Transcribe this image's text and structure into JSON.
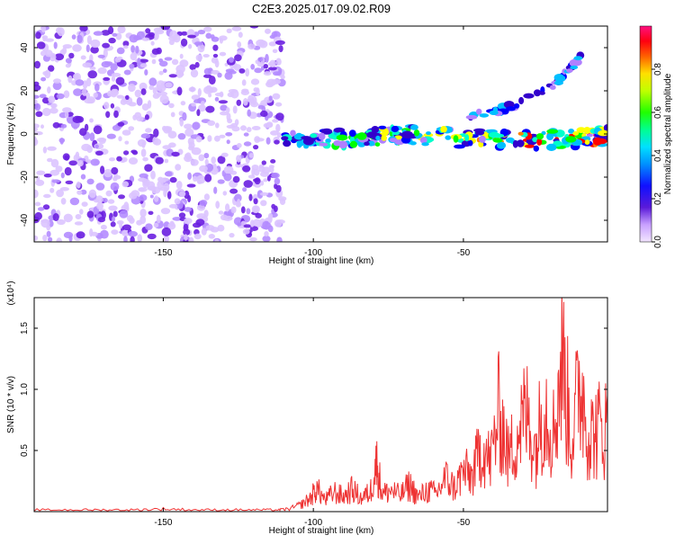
{
  "chart_data": [
    {
      "type": "heatmap",
      "title": "C2E3.2025.017.09.02.R09",
      "xlabel": "Height of straight line (km)",
      "ylabel": "Frequency (Hz)",
      "xlim": [
        -193,
        -2
      ],
      "ylim": [
        -50,
        50
      ],
      "x_ticks": [
        "-150",
        "-100",
        "-50"
      ],
      "y_ticks": [
        "-40",
        "-20",
        "0",
        "20",
        "40"
      ],
      "colorbar": {
        "label": "Normalized spectral amplitude",
        "range": [
          0,
          1
        ],
        "ticks": [
          "0.0",
          "0.2",
          "0.4",
          "0.6",
          "0.8"
        ],
        "colors": [
          "#f0e0ff",
          "#b080ff",
          "#3300cc",
          "#0000ff",
          "#00bfff",
          "#00ffcc",
          "#00ff00",
          "#ffff00",
          "#ff8000",
          "#ff0000",
          "#ff0080"
        ]
      },
      "noise_region": {
        "x_range": [
          -193,
          -110
        ],
        "freq_range": [
          -50,
          50
        ],
        "amplitude": 0.1
      },
      "signal_tracks": [
        {
          "x": [
            -110,
            -90,
            -70,
            -50,
            -30,
            -10,
            -2
          ],
          "freq": [
            -3,
            -2,
            0,
            -2,
            -3,
            -2,
            -1
          ],
          "peak_amplitude": 0.95
        },
        {
          "x": [
            -48,
            -35,
            -20,
            -10
          ],
          "freq": [
            8,
            12,
            22,
            37
          ],
          "peak_amplitude": 0.3
        }
      ]
    },
    {
      "type": "line",
      "xlabel": "Height of straight line (km)",
      "ylabel": "SNR (10 * v/v)",
      "y_multiplier_label": "(x10⁴)",
      "xlim": [
        -193,
        -2
      ],
      "ylim": [
        0,
        1.75
      ],
      "x_ticks": [
        "-150",
        "-100",
        "-50"
      ],
      "y_ticks": [
        "0.5",
        "1.0",
        "1.5"
      ],
      "line_color": "#ee3333",
      "series": [
        {
          "x": [
            -193,
            -180,
            -170,
            -160,
            -150,
            -140,
            -130,
            -120,
            -112,
            -108,
            -104,
            -101,
            -99,
            -96,
            -93,
            -90,
            -87,
            -84,
            -81,
            -79,
            -77,
            -74,
            -71,
            -68,
            -65,
            -62,
            -59,
            -56,
            -53,
            -50,
            -47,
            -44,
            -41,
            -38,
            -35,
            -32,
            -29,
            -26,
            -23,
            -20,
            -17,
            -14,
            -11,
            -8,
            -5,
            -2
          ],
          "y": [
            0.02,
            0.02,
            0.02,
            0.02,
            0.03,
            0.02,
            0.02,
            0.02,
            0.02,
            0.03,
            0.08,
            0.15,
            0.26,
            0.13,
            0.22,
            0.17,
            0.25,
            0.15,
            0.22,
            0.55,
            0.2,
            0.24,
            0.18,
            0.3,
            0.16,
            0.24,
            0.2,
            0.38,
            0.27,
            0.45,
            0.4,
            0.75,
            0.55,
            1.15,
            0.6,
            0.9,
            1.1,
            0.7,
            1.25,
            0.9,
            1.75,
            0.8,
            1.48,
            0.85,
            0.93,
            0.95
          ]
        }
      ]
    }
  ]
}
